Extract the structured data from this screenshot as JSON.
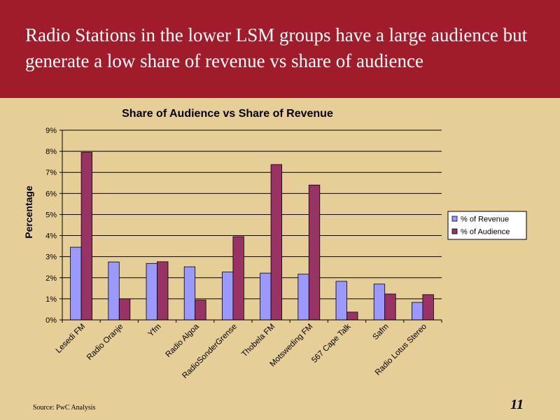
{
  "slide": {
    "title": "Radio Stations in the lower LSM groups have a large audience but generate a low share of revenue vs share of audience",
    "source": "Source: PwC Analysis",
    "page_number": "11"
  },
  "colors": {
    "banner": "#a01c2b",
    "background": "#e6cf97",
    "revenue": "#9999ff",
    "audience": "#993366"
  },
  "chart_data": {
    "type": "bar",
    "title": "Share of Audience vs Share of Revenue",
    "ylabel": "Percentage",
    "xlabel": "",
    "ylim": [
      0,
      9
    ],
    "yticks": [
      "0%",
      "1%",
      "2%",
      "3%",
      "4%",
      "5%",
      "6%",
      "7%",
      "8%",
      "9%"
    ],
    "grid": true,
    "legend_position": "right",
    "categories": [
      "Lesedi FM",
      "Radio Oranje",
      "Yfm",
      "Radio Algoa",
      "Radio Sonder Grense",
      "Thobela FM",
      "Motsweding FM",
      "567 Cape Talk",
      "Safm",
      "Radio Lotus Stereo"
    ],
    "category_labels": [
      "Lesedi FM",
      "Radio Oranje",
      "Yfm",
      "Radio Algoa",
      "RadioSonderGrense",
      "Thobela FM",
      "Motsweding FM",
      "567 Cape Talk",
      "Safm",
      "Radio Lotus Stereo"
    ],
    "series": [
      {
        "name": "% of Revenue",
        "values": [
          3.45,
          2.75,
          2.68,
          2.52,
          2.27,
          2.22,
          2.17,
          1.83,
          1.7,
          0.83
        ]
      },
      {
        "name": "% of Audience",
        "values": [
          7.95,
          1.0,
          2.76,
          0.94,
          3.95,
          7.37,
          6.4,
          0.37,
          1.23,
          1.2
        ]
      }
    ]
  }
}
